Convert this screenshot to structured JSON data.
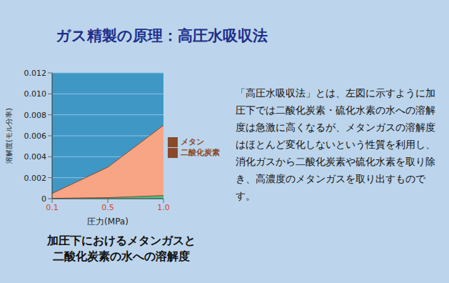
{
  "header": {
    "title": "ガス精製の原理：高圧水吸収法"
  },
  "chart_data": {
    "type": "area",
    "categories": [
      "0.1",
      "0.5",
      "1.0"
    ],
    "series": [
      {
        "name": "二酸化炭素",
        "color": "#f7a585",
        "values": [
          0.0005,
          0.003,
          0.007
        ]
      },
      {
        "name": "メタン",
        "color": "#4fbf86",
        "values": [
          3e-05,
          0.0001,
          0.0003
        ]
      }
    ],
    "x_label": "圧力(MPa)",
    "y_label": "溶解度(モル分率)",
    "ylim": [
      0,
      0.012
    ],
    "yticks": [
      0,
      0.002,
      0.004,
      0.006,
      0.008,
      {
        "value": 0.01,
        "label": "0.010"
      },
      0.012
    ],
    "grid": true,
    "legend": "right"
  },
  "caption": [
    "加圧下におけるメタンガスと",
    "二酸化炭素の水への溶解度"
  ],
  "description": "「高圧水吸収法」とは、左図に示すように加圧下では二酸化炭素・硫化水素の水への溶解度は急激に高くなるが、メタンガスの溶解度はほとんど変化しないという性質を利用し、消化ガスから二酸化炭素や硫化水素を取り除き、高濃度のメタンガスを取り出すものです。"
}
